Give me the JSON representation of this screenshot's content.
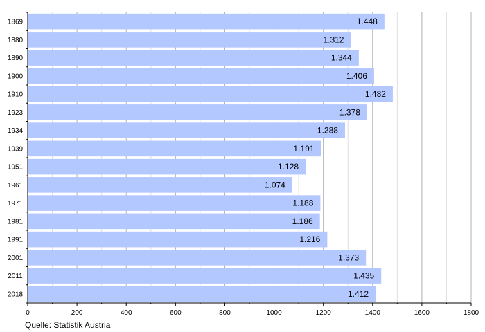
{
  "chart_data": {
    "type": "bar",
    "orientation": "horizontal",
    "categories": [
      "1869",
      "1880",
      "1890",
      "1900",
      "1910",
      "1923",
      "1934",
      "1939",
      "1951",
      "1961",
      "1971",
      "1981",
      "1991",
      "2001",
      "2011",
      "2018"
    ],
    "values": [
      1448,
      1312,
      1344,
      1406,
      1482,
      1378,
      1288,
      1191,
      1128,
      1074,
      1188,
      1186,
      1216,
      1373,
      1435,
      1412
    ],
    "value_labels": [
      "1.448",
      "1.312",
      "1.344",
      "1.406",
      "1.482",
      "1.378",
      "1.288",
      "1.191",
      "1.128",
      "1.074",
      "1.188",
      "1.186",
      "1.216",
      "1.373",
      "1.435",
      "1.412"
    ],
    "xlim": [
      0,
      1800
    ],
    "x_ticks": [
      "0",
      "200",
      "400",
      "600",
      "800",
      "1000",
      "1200",
      "1400",
      "1600",
      "1800"
    ],
    "title": "",
    "xlabel": "",
    "ylabel": "",
    "grid": "vertical",
    "bar_color": "#b3c8ff",
    "gridline_color": "#b0b0b0"
  },
  "source_note": "Quelle: Statistik Austria"
}
